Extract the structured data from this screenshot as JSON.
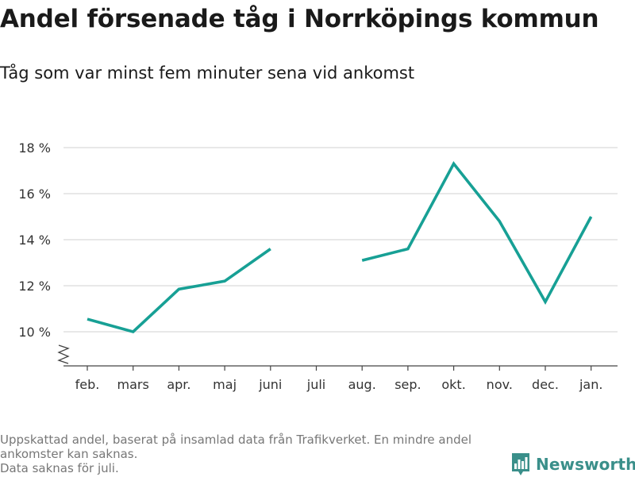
{
  "title": "Andel försenade tåg i Norrköpings kommun",
  "subtitle": "Tåg som var minst fem minuter sena vid ankomst",
  "footnote": {
    "line1": "Uppskattad andel, baserat på insamlad data från Trafikverket. En mindre andel",
    "line2": "ankomster kan saknas.",
    "line3": "Data saknas för juli."
  },
  "brand": {
    "name": "Newsworthy",
    "icon": "bar-chart-logo-icon",
    "color": "#3a8f8a"
  },
  "chart_data": {
    "type": "line",
    "title": "Andel försenade tåg i Norrköpings kommun",
    "subtitle": "Tåg som var minst fem minuter sena vid ankomst",
    "xlabel": "",
    "ylabel": "",
    "categories": [
      "feb.",
      "mars",
      "apr.",
      "maj",
      "juni",
      "juli",
      "aug.",
      "sep.",
      "okt.",
      "nov.",
      "dec.",
      "jan."
    ],
    "series": [
      {
        "values": [
          10.55,
          10.0,
          11.85,
          12.2,
          13.6,
          null,
          13.1,
          13.6,
          17.3,
          14.8,
          11.3,
          15.0
        ],
        "color": "#17a095"
      }
    ],
    "yticks": [
      10,
      12,
      14,
      16,
      18
    ],
    "ytick_labels": [
      "10 %",
      "12 %",
      "14 %",
      "16 %",
      "18 %"
    ],
    "ylim": [
      8.5,
      18
    ],
    "axis_break": true,
    "grid": true,
    "legend": "none"
  }
}
